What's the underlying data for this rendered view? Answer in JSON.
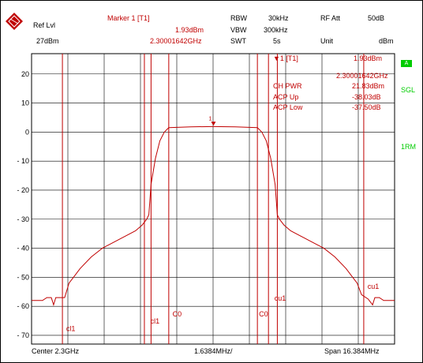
{
  "header": {
    "ref_lvl_label": "Ref Lvl",
    "ref_lvl_value": "27dBm",
    "marker_title": "Marker 1 [T1]",
    "marker_level": "1.93dBm",
    "marker_freq": "2.30001642GHz",
    "rbw_label": "RBW",
    "rbw_value": "30kHz",
    "vbw_label": "VBW",
    "vbw_value": "300kHz",
    "swt_label": "SWT",
    "swt_value": "5s",
    "rf_att_label": "RF Att",
    "rf_att_value": "50dB",
    "unit_label": "Unit",
    "unit_value": "dBm"
  },
  "marker_table": {
    "title": "▼1 [T1]",
    "level": "1.93dBm",
    "freq": "2.30001642GHz",
    "rows": [
      {
        "label": "CH PWR",
        "value": "21.83dBm"
      },
      {
        "label": "ACP Up",
        "value": "-38.03dB"
      },
      {
        "label": "ACP Low",
        "value": "-37.50dB"
      }
    ]
  },
  "side": {
    "badge": "A",
    "sgl": "SGL",
    "rm": "1RM"
  },
  "footer": {
    "center": "Center 2.3GHz",
    "per_div": "1.6384MHz/",
    "span": "Span 16.384MHz"
  },
  "colors": {
    "trace": "#c00000",
    "grid": "#000000",
    "annotation": "#c00000",
    "status": "#00cc00"
  },
  "chart_data": {
    "type": "line",
    "x_unit": "MHz offset from center",
    "xlim": [
      -8.192,
      8.192
    ],
    "ylim": [
      -73,
      27
    ],
    "yticks": [
      20,
      10,
      0,
      -10,
      -20,
      -30,
      -40,
      -50,
      -60,
      -70
    ],
    "ytick_labels": [
      "20",
      "10",
      "0",
      "- 10",
      "- 20",
      "- 30",
      "- 40",
      "- 50",
      "- 60",
      "- 70"
    ],
    "x_divisions": 10,
    "marker": {
      "x": 0.016,
      "y": 1.93,
      "label": "1"
    },
    "channel_lines": [
      {
        "label": "cl1",
        "x": -6.8
      },
      {
        "label": "cl1",
        "x": -3.1
      },
      {
        "label": "cl1",
        "x": -2.8
      },
      {
        "label": "C0",
        "x": -2.0
      },
      {
        "label": "C0",
        "x": 2.0
      },
      {
        "label": "cu1",
        "x": 2.5
      },
      {
        "label": "cu1",
        "x": 2.9
      },
      {
        "label": "cu1",
        "x": 6.8
      }
    ],
    "channel_labels": [
      {
        "text": "cl1",
        "x": -6.7,
        "y": -68.5
      },
      {
        "text": "cl1",
        "x": -2.9,
        "y": -66.0
      },
      {
        "text": "C0",
        "x": -1.9,
        "y": -63.5
      },
      {
        "text": "C0",
        "x": 2.0,
        "y": -63.5
      },
      {
        "text": "cu1",
        "x": 2.7,
        "y": -58.0
      },
      {
        "text": "cu1",
        "x": 6.9,
        "y": -54.0
      }
    ],
    "trace": [
      [
        -8.19,
        -58
      ],
      [
        -7.7,
        -58
      ],
      [
        -7.5,
        -57
      ],
      [
        -7.3,
        -57
      ],
      [
        -7.2,
        -59.5
      ],
      [
        -7.1,
        -57
      ],
      [
        -6.7,
        -57
      ],
      [
        -6.5,
        -52
      ],
      [
        -6.3,
        -50
      ],
      [
        -6.0,
        -47
      ],
      [
        -5.5,
        -43
      ],
      [
        -5.0,
        -40
      ],
      [
        -4.5,
        -38
      ],
      [
        -4.0,
        -36
      ],
      [
        -3.5,
        -34
      ],
      [
        -3.2,
        -32
      ],
      [
        -3.0,
        -30
      ],
      [
        -2.9,
        -28.5
      ],
      [
        -2.8,
        -18
      ],
      [
        -2.6,
        -9
      ],
      [
        -2.4,
        -3
      ],
      [
        -2.2,
        0
      ],
      [
        -2.0,
        1.5
      ],
      [
        -1.0,
        1.8
      ],
      [
        0.0,
        1.9
      ],
      [
        1.0,
        1.8
      ],
      [
        2.0,
        1.5
      ],
      [
        2.2,
        0
      ],
      [
        2.4,
        -3
      ],
      [
        2.6,
        -9
      ],
      [
        2.8,
        -18
      ],
      [
        2.9,
        -28.5
      ],
      [
        3.0,
        -30
      ],
      [
        3.2,
        -32
      ],
      [
        3.5,
        -34
      ],
      [
        4.0,
        -36
      ],
      [
        4.5,
        -38
      ],
      [
        5.0,
        -40
      ],
      [
        5.5,
        -43
      ],
      [
        6.0,
        -47
      ],
      [
        6.3,
        -50
      ],
      [
        6.5,
        -52
      ],
      [
        6.7,
        -56
      ],
      [
        7.0,
        -57.5
      ],
      [
        7.2,
        -59.5
      ],
      [
        7.3,
        -57
      ],
      [
        7.5,
        -57
      ],
      [
        7.7,
        -58
      ],
      [
        8.19,
        -58
      ]
    ]
  }
}
